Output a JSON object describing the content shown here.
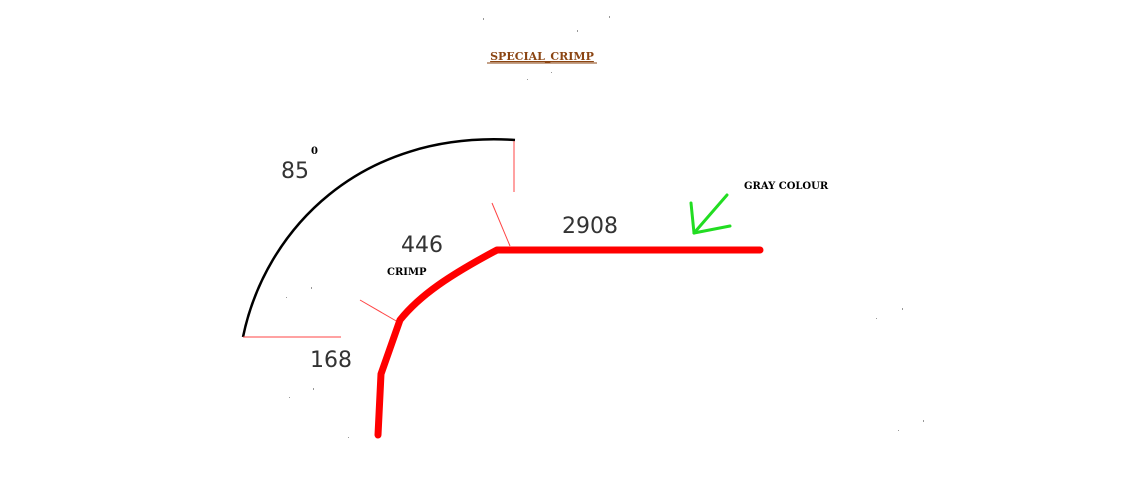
{
  "title": "SPECIAL_CRIMP",
  "labels": {
    "angle_value": "85",
    "angle_degree_mark": "0",
    "crimp_length": "446",
    "crimp_label": "CRIMP",
    "flat_length": "2908",
    "offset_length": "168",
    "colour_note": "GRAY COLOUR"
  },
  "colors": {
    "profile": "#ff0000",
    "arrow": "#22dd22",
    "title": "#8b4513",
    "dimension_lines": "#ff4444",
    "angle_arc": "#000000"
  }
}
